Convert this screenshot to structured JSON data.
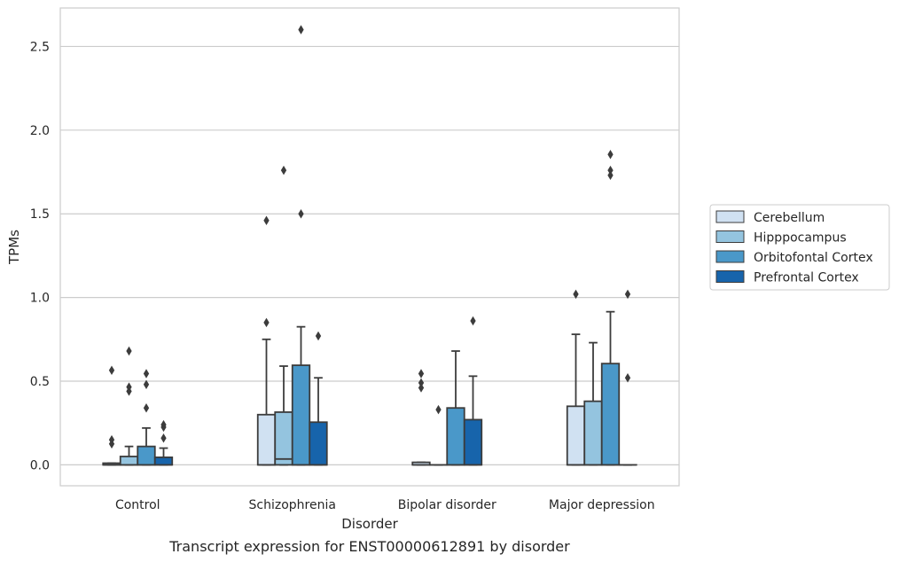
{
  "chart_data": {
    "type": "box",
    "caption": "Transcript expression for ENST00000612891 by disorder",
    "xlabel": "Disorder",
    "ylabel": "TPMs",
    "ylim": [
      -0.125,
      2.73
    ],
    "yticks": [
      0.0,
      0.5,
      1.0,
      1.5,
      2.0,
      2.5
    ],
    "ytick_labels": [
      "0.0",
      "0.5",
      "1.0",
      "1.5",
      "2.0",
      "2.5"
    ],
    "grid": "horizontal",
    "legend_position": "right",
    "categories": [
      "Control",
      "Schizophrenia",
      "Bipolar disorder",
      "Major depression"
    ],
    "series": [
      {
        "name": "Cerebellum",
        "color": "#d0e1f2",
        "boxes": [
          {
            "q1": 0.0,
            "median": 0.0,
            "q3": 0.01,
            "whislo": 0.0,
            "whishi": 0.01,
            "fliers": [
              0.125,
              0.15,
              0.565
            ]
          },
          {
            "q1": 0.0,
            "median": 0.0,
            "q3": 0.3,
            "whislo": 0.0,
            "whishi": 0.75,
            "fliers": [
              0.85,
              1.46
            ]
          },
          {
            "q1": 0.0,
            "median": 0.0,
            "q3": 0.015,
            "whislo": 0.0,
            "whishi": 0.015,
            "fliers": [
              0.46,
              0.49,
              0.545
            ]
          },
          {
            "q1": 0.0,
            "median": 0.0,
            "q3": 0.35,
            "whislo": 0.0,
            "whishi": 0.78,
            "fliers": [
              1.02
            ]
          }
        ]
      },
      {
        "name": "Hipppocampus",
        "color": "#94c4df",
        "boxes": [
          {
            "q1": 0.0,
            "median": 0.0,
            "q3": 0.05,
            "whislo": 0.0,
            "whishi": 0.11,
            "fliers": [
              0.44,
              0.465,
              0.68
            ]
          },
          {
            "q1": 0.0,
            "median": 0.035,
            "q3": 0.315,
            "whislo": 0.0,
            "whishi": 0.59,
            "fliers": [
              1.76
            ]
          },
          {
            "q1": 0.0,
            "median": 0.0,
            "q3": 0.0,
            "whislo": 0.0,
            "whishi": 0.0,
            "fliers": [
              0.33
            ]
          },
          {
            "q1": 0.0,
            "median": 0.0,
            "q3": 0.38,
            "whislo": 0.0,
            "whishi": 0.73,
            "fliers": []
          }
        ]
      },
      {
        "name": "Orbitofontal Cortex",
        "color": "#4a98c9",
        "boxes": [
          {
            "q1": 0.0,
            "median": 0.0,
            "q3": 0.11,
            "whislo": 0.0,
            "whishi": 0.22,
            "fliers": [
              0.34,
              0.48,
              0.545
            ]
          },
          {
            "q1": 0.0,
            "median": 0.0,
            "q3": 0.595,
            "whislo": 0.0,
            "whishi": 0.825,
            "fliers": [
              1.5,
              2.6
            ]
          },
          {
            "q1": 0.0,
            "median": 0.0,
            "q3": 0.34,
            "whislo": 0.0,
            "whishi": 0.68,
            "fliers": []
          },
          {
            "q1": 0.0,
            "median": 0.0,
            "q3": 0.605,
            "whislo": 0.0,
            "whishi": 0.915,
            "fliers": [
              1.73,
              1.76,
              1.855
            ]
          }
        ]
      },
      {
        "name": "Prefrontal Cortex",
        "color": "#1764ab",
        "boxes": [
          {
            "q1": 0.0,
            "median": 0.0,
            "q3": 0.045,
            "whislo": 0.0,
            "whishi": 0.1,
            "fliers": [
              0.16,
              0.225,
              0.24
            ]
          },
          {
            "q1": 0.0,
            "median": 0.0,
            "q3": 0.255,
            "whislo": 0.0,
            "whishi": 0.52,
            "fliers": [
              0.77
            ]
          },
          {
            "q1": 0.0,
            "median": 0.0,
            "q3": 0.27,
            "whislo": 0.0,
            "whishi": 0.53,
            "fliers": [
              0.86
            ]
          },
          {
            "q1": 0.0,
            "median": 0.0,
            "q3": 0.0,
            "whislo": 0.0,
            "whishi": 0.0,
            "fliers": [
              0.52,
              1.02
            ]
          }
        ]
      }
    ]
  }
}
